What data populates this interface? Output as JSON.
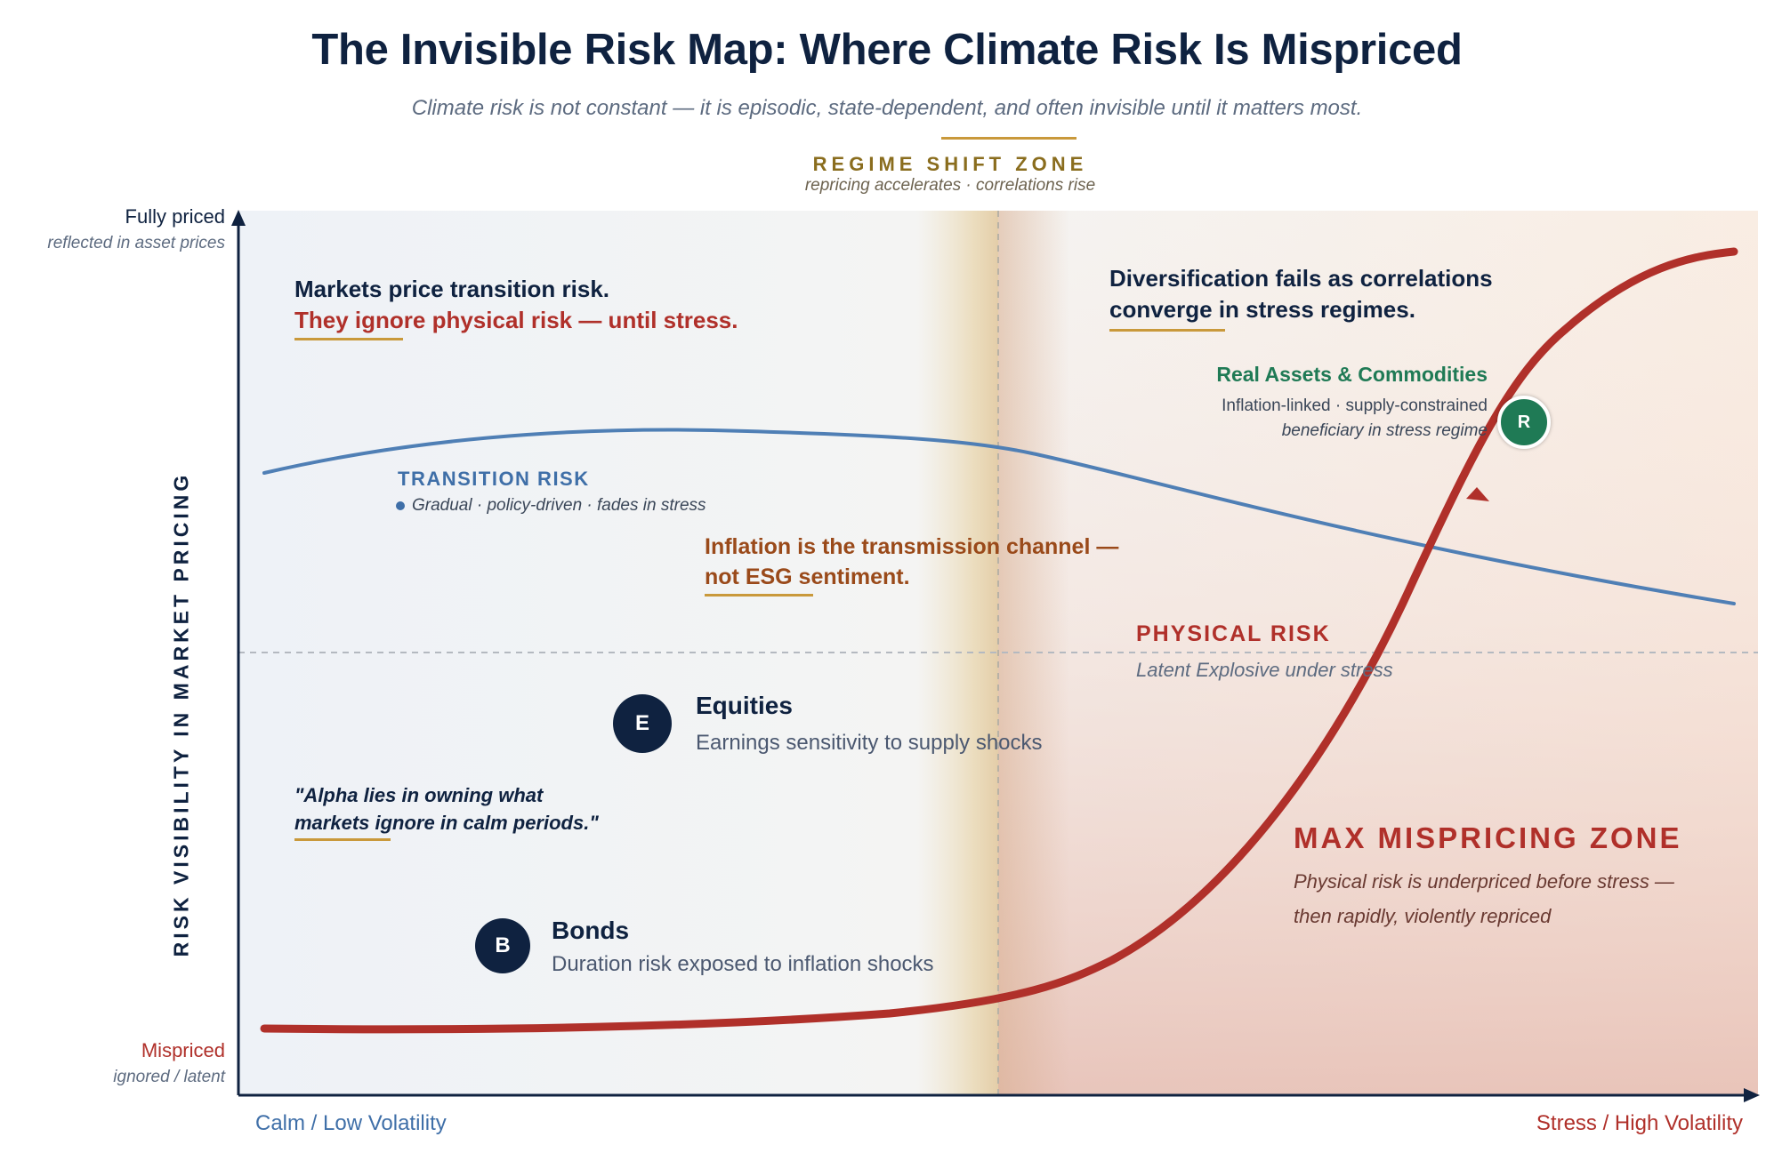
{
  "title": "The Invisible Risk Map: Where Climate Risk Is Mispriced",
  "subtitle": "Climate risk is not constant — it is episodic, state-dependent, and often invisible until it matters most.",
  "regime_shift": {
    "label": "REGIME SHIFT ZONE",
    "sub": "repricing accelerates · correlations rise"
  },
  "y_axis": {
    "label": "RISK VISIBILITY IN MARKET PRICING",
    "top": "Fully priced",
    "top_sub": "reflected in asset prices",
    "bottom": "Mispriced",
    "bottom_sub": "ignored / latent"
  },
  "x_axis": {
    "left": "Calm / Low Volatility",
    "right": "Stress / High Volatility"
  },
  "notes": {
    "markets_line1": "Markets price transition risk.",
    "markets_line2": "They ignore physical risk — until stress.",
    "diversification_line1": "Diversification fails as correlations",
    "diversification_line2": "converge in stress regimes.",
    "inflation_line1": "Inflation is the transmission channel —",
    "inflation_line2": "not ESG sentiment.",
    "quote_line1": "\"Alpha lies in owning what",
    "quote_line2": "markets ignore in calm periods.\""
  },
  "transition_risk": {
    "label": "TRANSITION RISK",
    "sub": "Gradual · policy-driven · fades in stress"
  },
  "physical_risk": {
    "label": "PHYSICAL RISK",
    "sub": "Latent  Explosive under stress"
  },
  "real_assets": {
    "title": "Real Assets & Commodities",
    "sub1": "Inflation-linked · supply-constrained",
    "sub2": "beneficiary in stress regime",
    "badge": "R"
  },
  "equities": {
    "badge": "E",
    "name": "Equities",
    "desc": "Earnings sensitivity to supply shocks"
  },
  "bonds": {
    "badge": "B",
    "name": "Bonds",
    "desc": "Duration risk exposed to inflation shocks"
  },
  "max_mispricing": {
    "title": "MAX MISPRICING ZONE",
    "sub1": "Physical risk is underpriced before stress —",
    "sub2": "then rapidly, violently repriced"
  },
  "colors": {
    "navy": "#0f2240",
    "transition_blue": "#4f7fb5",
    "physical_red": "#b0302a",
    "gold": "#c9993b",
    "green": "#1f7a55"
  }
}
